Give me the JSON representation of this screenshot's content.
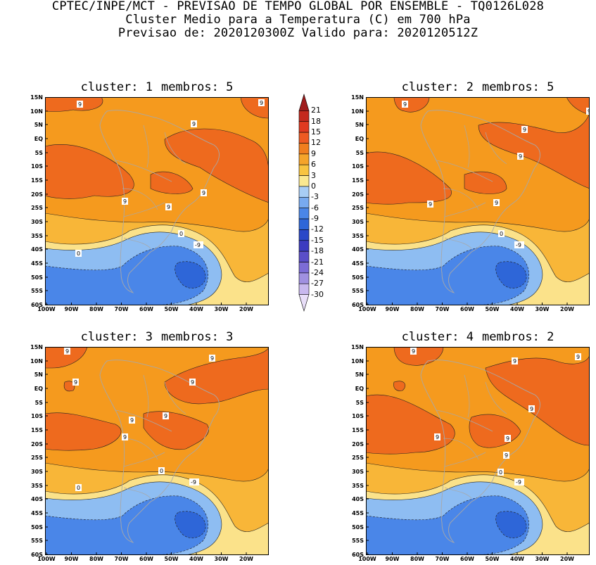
{
  "header": {
    "line1": "CPTEC/INPE/MCT - PREVISAO DE TEMPO GLOBAL POR ENSEMBLE - TQ0126L028",
    "line2": "Cluster Medio para a Temperatura (C) em 700 hPa",
    "line3": "Previsao de: 2020120300Z   Valido para: 2020120512Z"
  },
  "panels": [
    {
      "cluster_label": "cluster: 1",
      "members_label": "membros: 5",
      "contour_labels": [
        "9",
        "9",
        "9",
        "9",
        "9",
        "9",
        "0",
        "-9",
        "0"
      ]
    },
    {
      "cluster_label": "cluster: 2",
      "members_label": "membros: 5",
      "contour_labels": [
        "9",
        "9",
        "9",
        "9",
        "9",
        "9",
        "0",
        "-9"
      ]
    },
    {
      "cluster_label": "cluster: 3",
      "members_label": "membros: 3",
      "contour_labels": [
        "9",
        "9",
        "9",
        "9",
        "9",
        "9",
        "9",
        "0",
        "-9",
        "0"
      ]
    },
    {
      "cluster_label": "cluster: 4",
      "members_label": "membros: 2",
      "contour_labels": [
        "9",
        "9",
        "9",
        "9",
        "9",
        "9",
        "9",
        "0",
        "-9"
      ]
    }
  ],
  "axes": {
    "lat_labels": [
      "15N",
      "10N",
      "5N",
      "EQ",
      "5S",
      "10S",
      "15S",
      "20S",
      "25S",
      "30S",
      "35S",
      "40S",
      "45S",
      "50S",
      "55S",
      "60S"
    ],
    "lon_labels": [
      "100W",
      "90W",
      "80W",
      "70W",
      "60W",
      "50W",
      "40W",
      "30W",
      "20W"
    ]
  },
  "colorbar": {
    "levels": [
      "21",
      "18",
      "15",
      "12",
      "9",
      "6",
      "3",
      "0",
      "-3",
      "-6",
      "-9",
      "-12",
      "-15",
      "-18",
      "-21",
      "-24",
      "-27",
      "-30"
    ],
    "colors": [
      "#a01c1c",
      "#c42a1e",
      "#e03a20",
      "#ee5a22",
      "#f07e1e",
      "#f5a42a",
      "#f8c440",
      "#fae890",
      "#a8cdf5",
      "#78aaf0",
      "#4a86e8",
      "#2e66d8",
      "#2a48c8",
      "#3c3cc0",
      "#5a4ec8",
      "#7c6cd6",
      "#a090e0",
      "#c8b8ee",
      "#e8def8"
    ],
    "color_names": {
      "warm_deep": "#ee6a1e",
      "warm": "#f59a1e",
      "mild": "#f8b638",
      "neutral": "#fbe28a",
      "cool": "#8ebdf2",
      "cold": "#4a86e8",
      "colder": "#2e66d8"
    }
  }
}
